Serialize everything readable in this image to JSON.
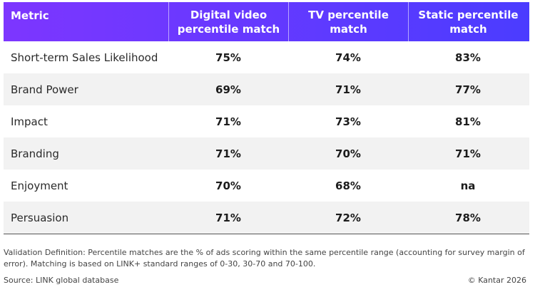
{
  "chart_data": {
    "type": "table",
    "columns": [
      "Metric",
      "Digital video percentile match",
      "TV percentile match",
      "Static percentile match"
    ],
    "header_lines": [
      [
        "Metric"
      ],
      [
        "Digital video",
        "percentile match"
      ],
      [
        "TV percentile",
        "match"
      ],
      [
        "Static percentile",
        "match"
      ]
    ],
    "rows": [
      {
        "metric": "Short-term Sales Likelihood",
        "values": [
          "75%",
          "74%",
          "83%"
        ]
      },
      {
        "metric": "Brand Power",
        "values": [
          "69%",
          "71%",
          "77%"
        ]
      },
      {
        "metric": "Impact",
        "values": [
          "71%",
          "73%",
          "81%"
        ]
      },
      {
        "metric": "Branding",
        "values": [
          "71%",
          "70%",
          "71%"
        ]
      },
      {
        "metric": "Enjoyment",
        "values": [
          "70%",
          "68%",
          "na"
        ]
      },
      {
        "metric": "Persuasion",
        "values": [
          "71%",
          "72%",
          "78%"
        ]
      }
    ]
  },
  "footnote": "Validation Definition: Percentile matches are the % of ads scoring within the same percentile range (accounting for survey margin of error). Matching is based on LINK+ standard ranges of 0-30, 30-70 and 70-100.",
  "source": "Source: LINK global database",
  "copyright": "© Kantar 2026",
  "colors": {
    "header_start": "#7d36ff",
    "header_end": "#4b3cff",
    "alt_row": "#f2f2f2"
  }
}
